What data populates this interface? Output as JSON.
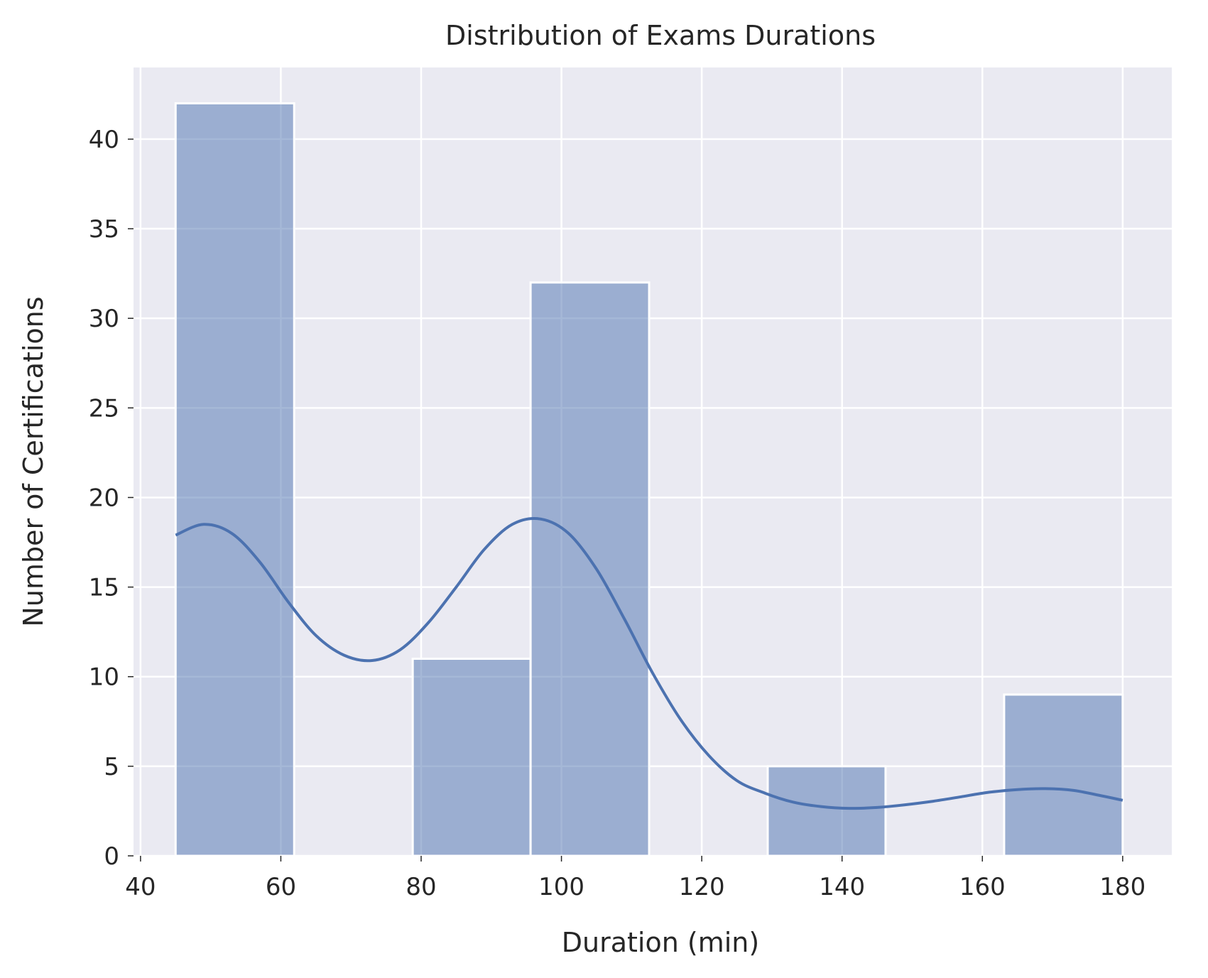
{
  "chart_data": {
    "type": "bar",
    "title": "Distribution of Exams Durations",
    "xlabel": "Duration (min)",
    "ylabel": "Number of Certifications",
    "xlim": [
      39,
      187
    ],
    "ylim": [
      0,
      44
    ],
    "xticks": [
      40,
      60,
      80,
      100,
      120,
      140,
      160,
      180
    ],
    "yticks": [
      0,
      5,
      10,
      15,
      20,
      25,
      30,
      35,
      40
    ],
    "grid": true,
    "bins": [
      {
        "x0": 45,
        "x1": 61.9,
        "count": 42
      },
      {
        "x0": 61.9,
        "x1": 78.8,
        "count": 0
      },
      {
        "x0": 78.8,
        "x1": 95.6,
        "count": 11
      },
      {
        "x0": 95.6,
        "x1": 112.5,
        "count": 32
      },
      {
        "x0": 112.5,
        "x1": 129.4,
        "count": 0
      },
      {
        "x0": 129.4,
        "x1": 146.2,
        "count": 5
      },
      {
        "x0": 146.2,
        "x1": 163.1,
        "count": 0
      },
      {
        "x0": 163.1,
        "x1": 180,
        "count": 9
      }
    ],
    "kde": {
      "x": [
        45,
        49,
        53,
        57,
        61,
        65,
        69,
        73,
        77,
        81,
        85,
        89,
        93,
        97,
        101,
        105,
        109,
        113,
        117,
        121,
        125,
        129,
        133,
        137,
        141,
        145,
        149,
        153,
        157,
        161,
        165,
        169,
        173,
        177,
        180
      ],
      "y": [
        17.9,
        18.5,
        18.0,
        16.4,
        14.2,
        12.3,
        11.2,
        10.9,
        11.5,
        13.0,
        15.0,
        17.1,
        18.5,
        18.8,
        18.0,
        16.0,
        13.2,
        10.2,
        7.6,
        5.6,
        4.2,
        3.5,
        3.0,
        2.75,
        2.65,
        2.7,
        2.85,
        3.05,
        3.3,
        3.55,
        3.7,
        3.75,
        3.65,
        3.35,
        3.1
      ]
    },
    "colors": {
      "bar": "#4c72b0",
      "bar_opacity": 0.5,
      "kde": "#4c72b0",
      "background": "#eaeaf2",
      "grid": "#ffffff"
    }
  }
}
